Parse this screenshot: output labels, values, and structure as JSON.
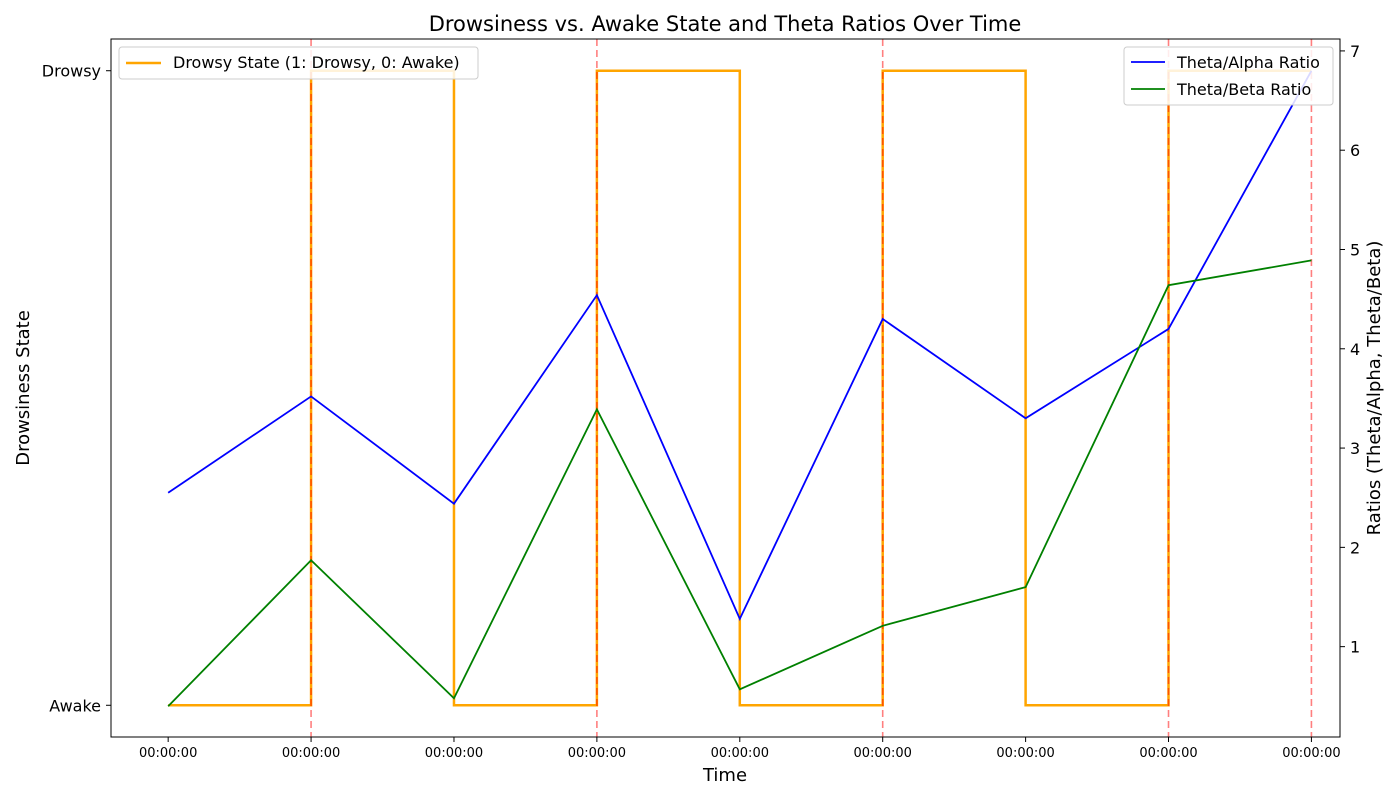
{
  "chart_data": {
    "type": "line",
    "title": "Drowsiness vs. Awake State and Theta Ratios Over Time",
    "xlabel": "Time",
    "ylabel_left": "Drowsiness State",
    "ylabel_right": "Ratios (Theta/Alpha, Theta/Beta)",
    "x_ticks": [
      "00:00:00",
      "00:00:00",
      "00:00:00",
      "00:00:00",
      "00:00:00",
      "00:00:00",
      "00:00:00",
      "00:00:00",
      "00:00:00"
    ],
    "left_axis": {
      "ticks": [
        {
          "value": 0,
          "label": "Awake"
        },
        {
          "value": 1,
          "label": "Drowsy"
        }
      ],
      "ylim": [
        -0.05,
        1.05
      ]
    },
    "right_axis": {
      "ticks": [
        1,
        2,
        3,
        4,
        5,
        6,
        7
      ],
      "ylim": [
        0.09,
        7.12
      ]
    },
    "xlim": [
      -0.4,
      8.2
    ],
    "drowsy_state": {
      "name": "Drowsy State (1: Drowsy, 0: Awake)",
      "color": "#ffa500",
      "step": "post",
      "values": [
        0,
        1,
        0,
        1,
        0,
        1,
        0,
        1,
        1
      ]
    },
    "transition_markers": {
      "color": "#ff0000",
      "style": "dashed",
      "x": [
        1,
        3,
        5,
        7,
        8
      ]
    },
    "series": [
      {
        "name": "Theta/Alpha Ratio",
        "color": "#0000ff",
        "values": [
          2.55,
          3.52,
          2.44,
          4.54,
          1.28,
          4.3,
          3.3,
          4.2,
          6.8
        ]
      },
      {
        "name": "Theta/Beta Ratio",
        "color": "#008000",
        "values": [
          0.4,
          1.87,
          0.48,
          3.39,
          0.57,
          1.21,
          1.6,
          4.64,
          4.89
        ]
      }
    ],
    "legend_left_position": "top-left",
    "legend_right_position": "top-right",
    "grid": false
  }
}
